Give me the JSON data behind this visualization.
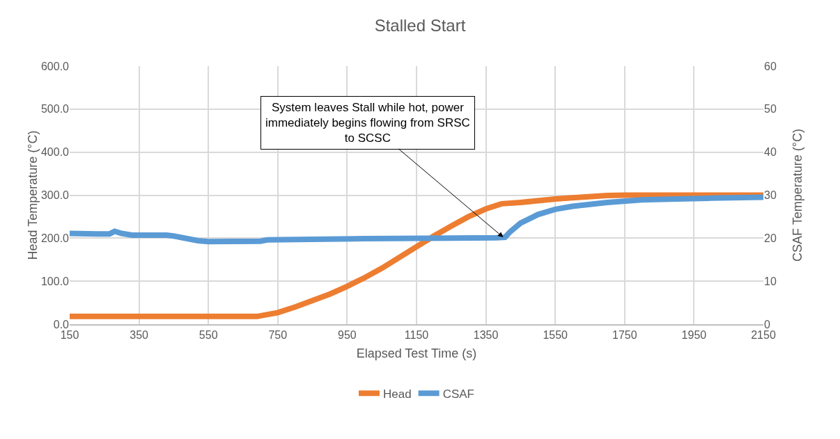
{
  "chart_data": {
    "type": "line",
    "title": "Stalled Start",
    "xlabel": "Elapsed Test Time (s)",
    "ylabel": "Head Temperature (°C)",
    "y2label": "CSAF Temperature (°C)",
    "series": [
      {
        "name": "Head",
        "color": "#ed7d31",
        "x": [
          150,
          300,
          450,
          600,
          690,
          750,
          800,
          850,
          900,
          950,
          1000,
          1050,
          1100,
          1150,
          1200,
          1250,
          1300,
          1350,
          1395,
          1450,
          1500,
          1550,
          1600,
          1700,
          1750,
          1950,
          2150
        ],
        "values": [
          18,
          18,
          18,
          18,
          18,
          27,
          40,
          55,
          70,
          88,
          108,
          130,
          155,
          180,
          205,
          228,
          250,
          268,
          280,
          283,
          287,
          291,
          294,
          299,
          300,
          300,
          300
        ]
      },
      {
        "name": "CSAF",
        "color": "#5b9bd5",
        "axis": "y2",
        "x": [
          150,
          230,
          265,
          280,
          300,
          330,
          430,
          450,
          520,
          550,
          700,
          720,
          1000,
          1250,
          1380,
          1405,
          1420,
          1450,
          1500,
          1550,
          1600,
          1700,
          1800,
          1900,
          2000,
          2150
        ],
        "values": [
          21.1,
          21,
          21,
          21.6,
          21.1,
          20.7,
          20.7,
          20.5,
          19.4,
          19.2,
          19.3,
          19.6,
          19.9,
          20,
          20.1,
          20.2,
          21.5,
          23.5,
          25.5,
          26.7,
          27.4,
          28.3,
          28.9,
          29.1,
          29.3,
          29.5
        ]
      }
    ],
    "xlim": [
      150,
      2150
    ],
    "xticks": [
      150,
      350,
      550,
      750,
      950,
      1150,
      1350,
      1550,
      1750,
      1950,
      2150
    ],
    "ylim": [
      0,
      600
    ],
    "yticks": [
      {
        "value": 0,
        "label": "0.0"
      },
      {
        "value": 100,
        "label": "100.0"
      },
      {
        "value": 200,
        "label": "200.0"
      },
      {
        "value": 300,
        "label": "300.0"
      },
      {
        "value": 400,
        "label": "400.0"
      },
      {
        "value": 500,
        "label": "500.0"
      },
      {
        "value": 600,
        "label": "600.0"
      }
    ],
    "y2lim": [
      0,
      60
    ],
    "y2ticks": [
      0,
      10,
      20,
      30,
      40,
      50,
      60
    ],
    "annotations": [
      {
        "text": "System leaves Stall while hot, power immediately begins flowing from SRSC to SCSC",
        "x": 1400,
        "y": 202
      }
    ],
    "grid": true,
    "legend": "bottom",
    "marker": "none",
    "line_style": "solid"
  }
}
